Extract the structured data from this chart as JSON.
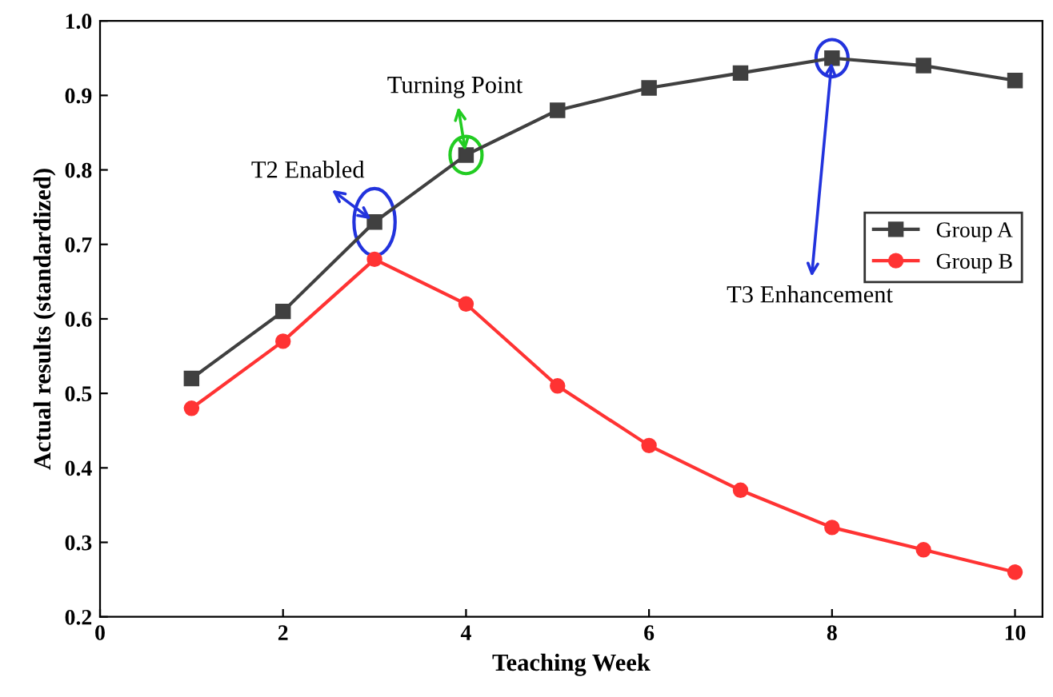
{
  "chart_data": {
    "type": "line",
    "xlabel": "Teaching Week",
    "ylabel": "Actual results (standardized)",
    "x": [
      1,
      2,
      3,
      4,
      5,
      6,
      7,
      8,
      9,
      10
    ],
    "series": [
      {
        "name": "Group A",
        "color": "#404040",
        "marker": "square",
        "values": [
          0.52,
          0.61,
          0.73,
          0.82,
          0.88,
          0.91,
          0.93,
          0.95,
          0.94,
          0.92
        ]
      },
      {
        "name": "Group B",
        "color": "#ff3333",
        "marker": "circle",
        "values": [
          0.48,
          0.57,
          0.68,
          0.62,
          0.51,
          0.43,
          0.37,
          0.32,
          0.29,
          0.26
        ]
      }
    ],
    "xlim": [
      0,
      10.3
    ],
    "ylim": [
      0.2,
      1.0
    ],
    "xticks": [
      0,
      2,
      4,
      6,
      8,
      10
    ],
    "yticks": [
      0.2,
      0.3,
      0.4,
      0.5,
      0.6,
      0.7,
      0.8,
      0.9,
      {
        "value": 1.0,
        "label": "1.0"
      }
    ],
    "grid": false,
    "legend": "right",
    "line_style": "solid",
    "annotations": [
      {
        "text": "Turning Point",
        "x": 4,
        "y": 0.82
      },
      {
        "text": "T2 Enabled",
        "x": 3,
        "y": 0.73
      },
      {
        "text": "T3 Enhancement",
        "x": 8,
        "y": 0.95
      }
    ]
  }
}
